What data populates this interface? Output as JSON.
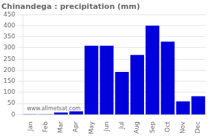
{
  "chart_data": {
    "type": "bar",
    "title": "Chinandega : precipitation (mm)",
    "categories": [
      "Jan",
      "Feb",
      "Mar",
      "Apr",
      "May",
      "Jun",
      "Jul",
      "Aug",
      "Sep",
      "Oct",
      "Nov",
      "Dec"
    ],
    "values": [
      2,
      2,
      10,
      15,
      310,
      310,
      192,
      268,
      400,
      328,
      60,
      83
    ],
    "color": "#0000dd",
    "ylim": [
      0,
      450
    ],
    "yticks": [
      0,
      50,
      100,
      150,
      200,
      250,
      300,
      350,
      400,
      450
    ],
    "grid": true,
    "annotations": [
      "www.allmetsat.com"
    ]
  }
}
